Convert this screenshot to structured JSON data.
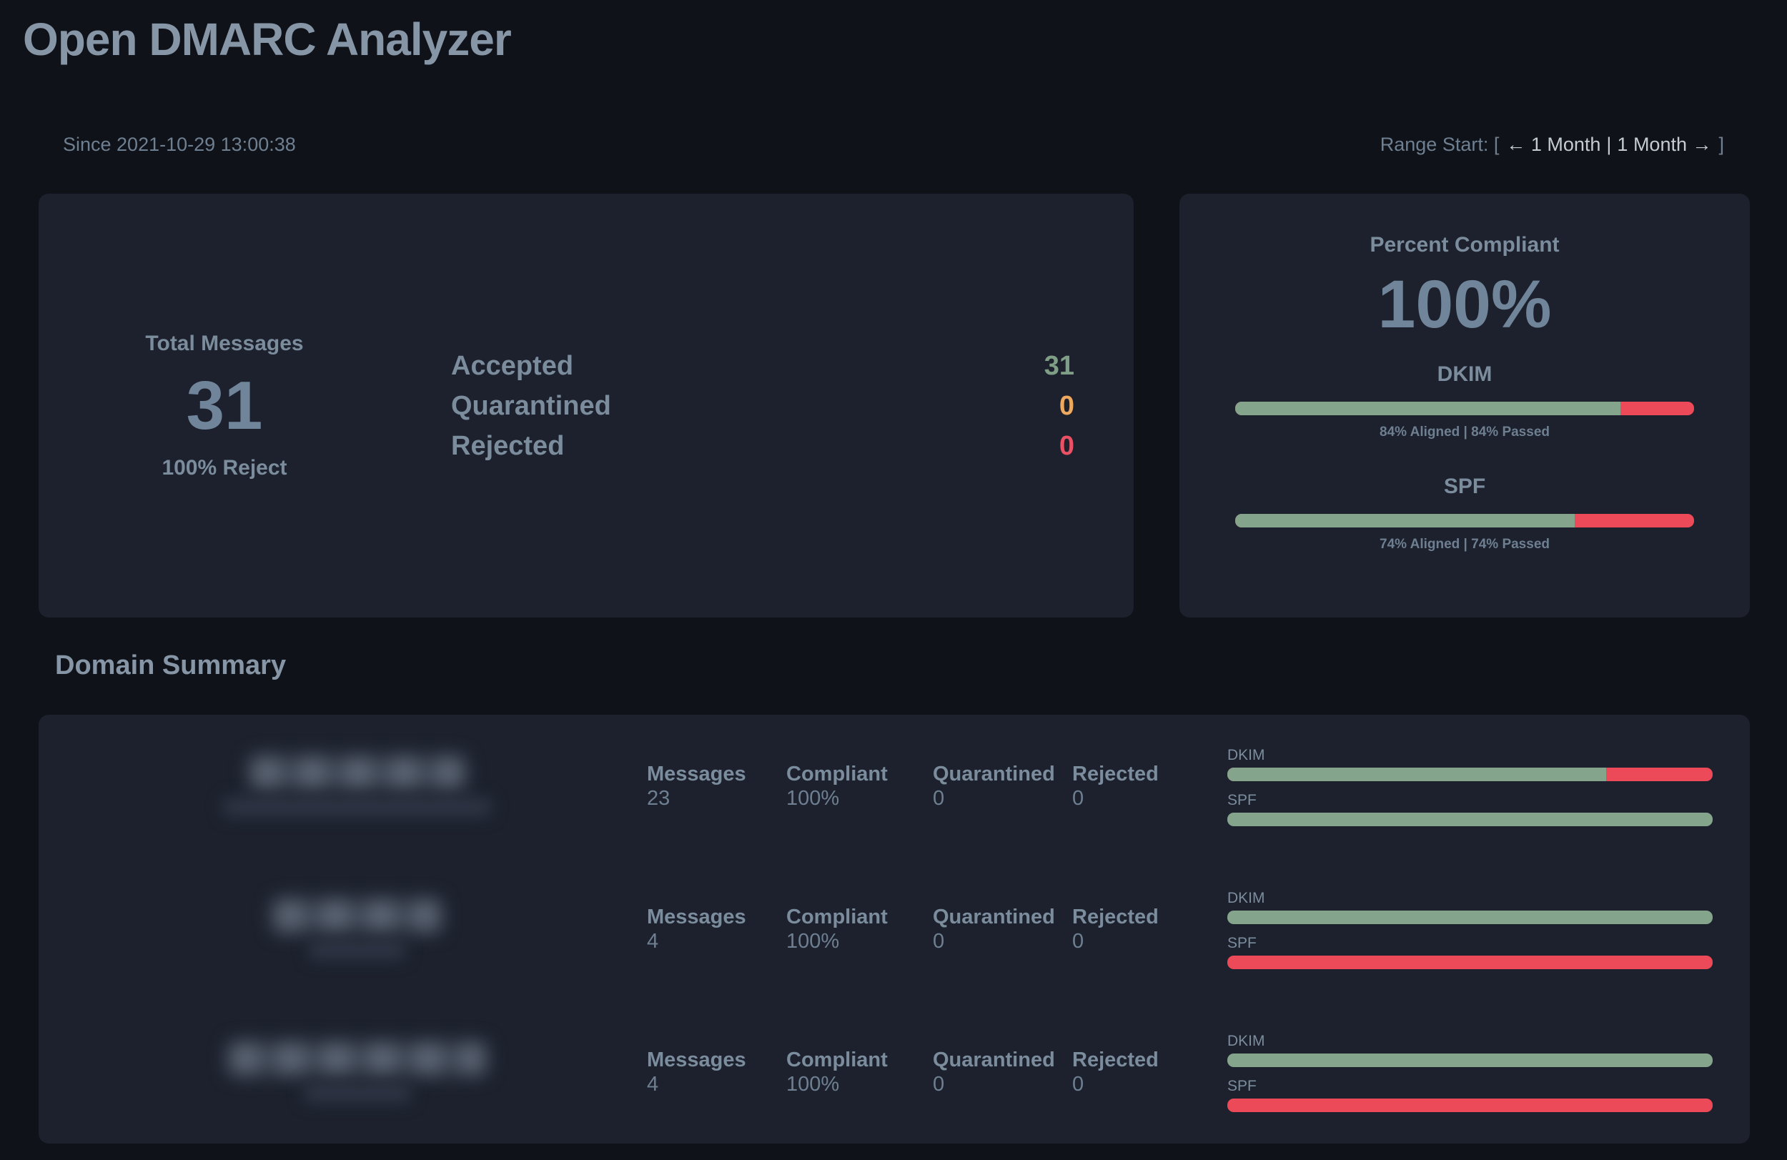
{
  "colors": {
    "page_bg": "#0f1218",
    "card_bg": "#1c212d",
    "heading_text": "#8796a6",
    "label_text": "#7b8c9d",
    "dim_text": "#6e7f91",
    "bright_link_text": "#c4cbd3",
    "big_value_text": "#71859a",
    "pass_green": "#84a58c",
    "fail_red": "#ec4a59",
    "accepted_green": "#7f9e86",
    "quarantined_orange": "#efa95e",
    "rejected_red": "#ea5164"
  },
  "page": {
    "title": "Open DMARC Analyzer"
  },
  "header": {
    "since": "Since 2021-10-29 13:00:38",
    "range": {
      "prefix": "Range Start: [",
      "prev": "← 1 Month",
      "separator": "|",
      "next": "1 Month →",
      "suffix": "]"
    }
  },
  "totals": {
    "label": "Total Messages",
    "value": "31",
    "subtext": "100% Reject",
    "rows": [
      {
        "label": "Accepted",
        "value": "31"
      },
      {
        "label": "Quarantined",
        "value": "0"
      },
      {
        "label": "Rejected",
        "value": "0"
      }
    ]
  },
  "compliance": {
    "title": "Percent Compliant",
    "value": "100%",
    "meters": [
      {
        "label": "DKIM",
        "pct": 84,
        "caption": "84% Aligned | 84% Passed"
      },
      {
        "label": "SPF",
        "pct": 74,
        "caption": "74% Aligned | 74% Passed"
      }
    ]
  },
  "domain_summary": {
    "title": "Domain Summary",
    "rows": [
      {
        "domain_redacted": true,
        "stats": [
          {
            "label": "Messages",
            "value": "23"
          },
          {
            "label": "Compliant",
            "value": "100%"
          },
          {
            "label": "Quarantined",
            "value": "0"
          },
          {
            "label": "Rejected",
            "value": "0"
          }
        ],
        "dkim": {
          "label": "DKIM",
          "pct": 78
        },
        "spf": {
          "label": "SPF",
          "pct": 100
        }
      },
      {
        "domain_redacted": true,
        "stats": [
          {
            "label": "Messages",
            "value": "4"
          },
          {
            "label": "Compliant",
            "value": "100%"
          },
          {
            "label": "Quarantined",
            "value": "0"
          },
          {
            "label": "Rejected",
            "value": "0"
          }
        ],
        "dkim": {
          "label": "DKIM",
          "pct": 100
        },
        "spf": {
          "label": "SPF",
          "pct": 0
        }
      },
      {
        "domain_redacted": true,
        "stats": [
          {
            "label": "Messages",
            "value": "4"
          },
          {
            "label": "Compliant",
            "value": "100%"
          },
          {
            "label": "Quarantined",
            "value": "0"
          },
          {
            "label": "Rejected",
            "value": "0"
          }
        ],
        "dkim": {
          "label": "DKIM",
          "pct": 100
        },
        "spf": {
          "label": "SPF",
          "pct": 0
        }
      }
    ]
  }
}
